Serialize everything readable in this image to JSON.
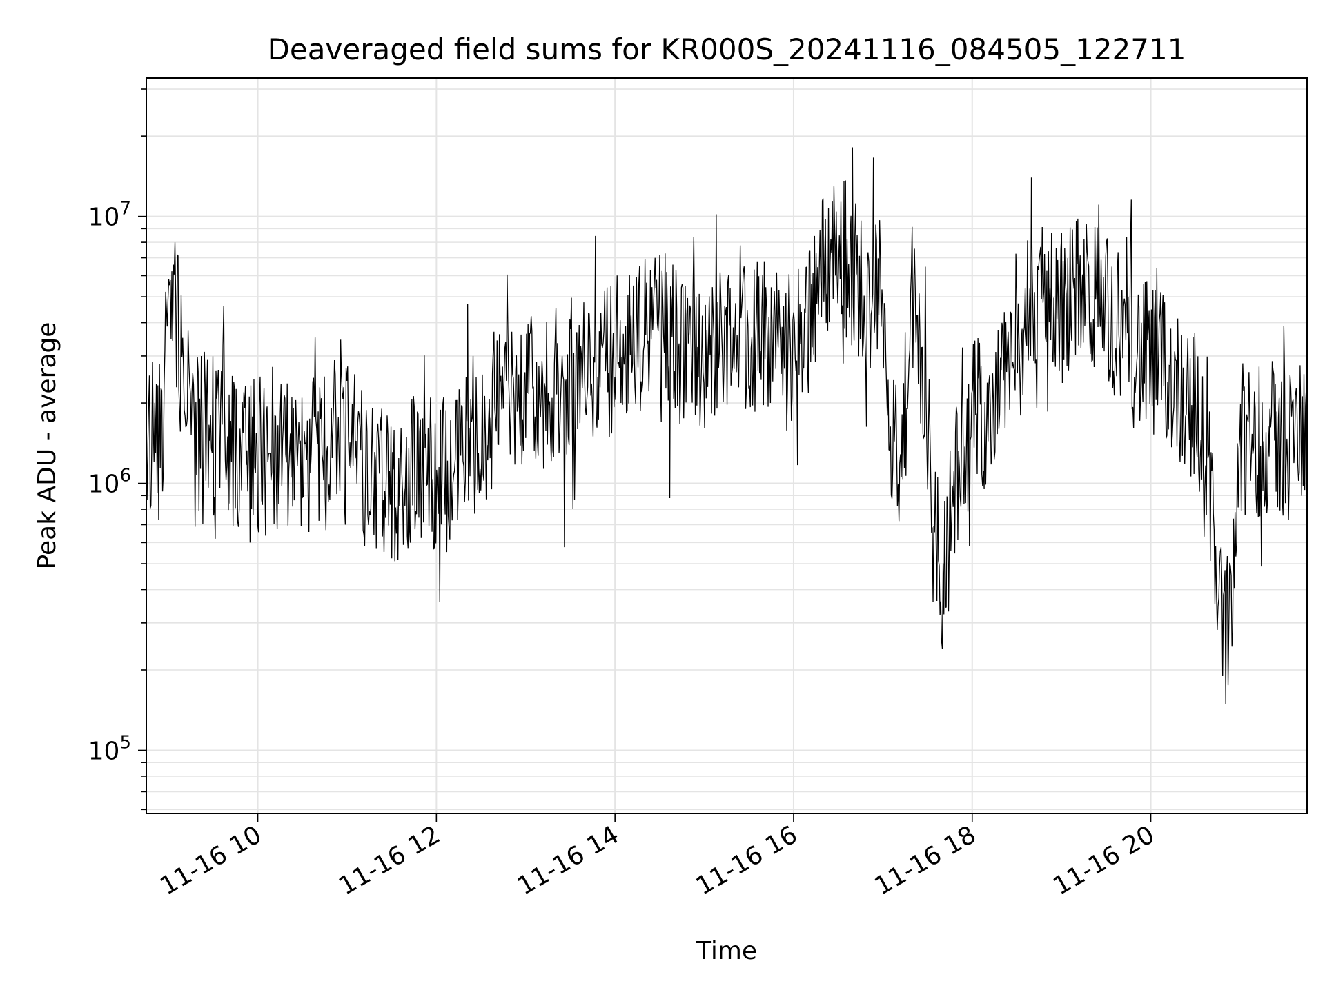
{
  "chart_data": {
    "type": "line",
    "title": "Deaveraged field sums for KR000S_20241116_084505_122711",
    "xlabel": "Time",
    "ylabel": "Peak ADU - average",
    "x_unit": "datetime",
    "x_range": [
      "2024-11-16T08:45:05",
      "2024-11-16T21:45:00"
    ],
    "xticks": [
      {
        "value": "2024-11-16T10:00:00",
        "label": "11-16 10"
      },
      {
        "value": "2024-11-16T12:00:00",
        "label": "11-16 12"
      },
      {
        "value": "2024-11-16T14:00:00",
        "label": "11-16 14"
      },
      {
        "value": "2024-11-16T16:00:00",
        "label": "11-16 16"
      },
      {
        "value": "2024-11-16T18:00:00",
        "label": "11-16 18"
      },
      {
        "value": "2024-11-16T20:00:00",
        "label": "11-16 20"
      }
    ],
    "yscale": "log",
    "ylim": [
      58000,
      33000000
    ],
    "yticks": [
      {
        "value": 100000,
        "base": "10",
        "exp": "5"
      },
      {
        "value": 1000000,
        "base": "10",
        "exp": "6"
      },
      {
        "value": 10000000,
        "base": "10",
        "exp": "7"
      }
    ],
    "grid": true,
    "series_color": "#000000",
    "series": [
      {
        "x": [
          "2024-11-16T08:45:05",
          "2024-11-16T08:55:00",
          "2024-11-16T09:00:00",
          "2024-11-16T09:05:00",
          "2024-11-16T09:10:00",
          "2024-11-16T09:20:00",
          "2024-11-16T09:30:00",
          "2024-11-16T09:45:00",
          "2024-11-16T10:00:00",
          "2024-11-16T10:15:00",
          "2024-11-16T10:30:00",
          "2024-11-16T10:45:00",
          "2024-11-16T11:00:00",
          "2024-11-16T11:15:00",
          "2024-11-16T11:30:00",
          "2024-11-16T11:45:00",
          "2024-11-16T12:00:00",
          "2024-11-16T12:15:00",
          "2024-11-16T12:30:00",
          "2024-11-16T12:45:00",
          "2024-11-16T13:00:00",
          "2024-11-16T13:15:00",
          "2024-11-16T13:30:00",
          "2024-11-16T13:45:00",
          "2024-11-16T14:00:00",
          "2024-11-16T14:15:00",
          "2024-11-16T14:30:00",
          "2024-11-16T14:45:00",
          "2024-11-16T15:00:00",
          "2024-11-16T15:15:00",
          "2024-11-16T15:30:00",
          "2024-11-16T15:45:00",
          "2024-11-16T16:00:00",
          "2024-11-16T16:15:00",
          "2024-11-16T16:30:00",
          "2024-11-16T16:45:00",
          "2024-11-16T17:00:00",
          "2024-11-16T17:10:00",
          "2024-11-16T17:20:00",
          "2024-11-16T17:30:00",
          "2024-11-16T17:40:00",
          "2024-11-16T17:50:00",
          "2024-11-16T18:00:00",
          "2024-11-16T18:15:00",
          "2024-11-16T18:30:00",
          "2024-11-16T18:45:00",
          "2024-11-16T19:00:00",
          "2024-11-16T19:15:00",
          "2024-11-16T19:30:00",
          "2024-11-16T19:45:00",
          "2024-11-16T20:00:00",
          "2024-11-16T20:15:00",
          "2024-11-16T20:30:00",
          "2024-11-16T20:40:00",
          "2024-11-16T20:50:00",
          "2024-11-16T21:00:00",
          "2024-11-16T21:15:00",
          "2024-11-16T21:30:00",
          "2024-11-16T21:45:00"
        ],
        "values": [
          1500000,
          1400000,
          4500000,
          4600000,
          2000000,
          1700000,
          1400000,
          1300000,
          1300000,
          1200000,
          1200000,
          1300000,
          1400000,
          1100000,
          1000000,
          1100000,
          1100000,
          1200000,
          1400000,
          2500000,
          2000000,
          2300000,
          2500000,
          2800000,
          3000000,
          3500000,
          3800000,
          3200000,
          2700000,
          3800000,
          3500000,
          3800000,
          3200000,
          5500000,
          8500000,
          5500000,
          5000000,
          700000,
          5000000,
          1500000,
          450000,
          1100000,
          1800000,
          1900000,
          3200000,
          5500000,
          4600000,
          5000000,
          4800000,
          3300000,
          2800000,
          2500000,
          1900000,
          900000,
          200000,
          1400000,
          1500000,
          1400000,
          1600000
        ]
      }
    ]
  }
}
